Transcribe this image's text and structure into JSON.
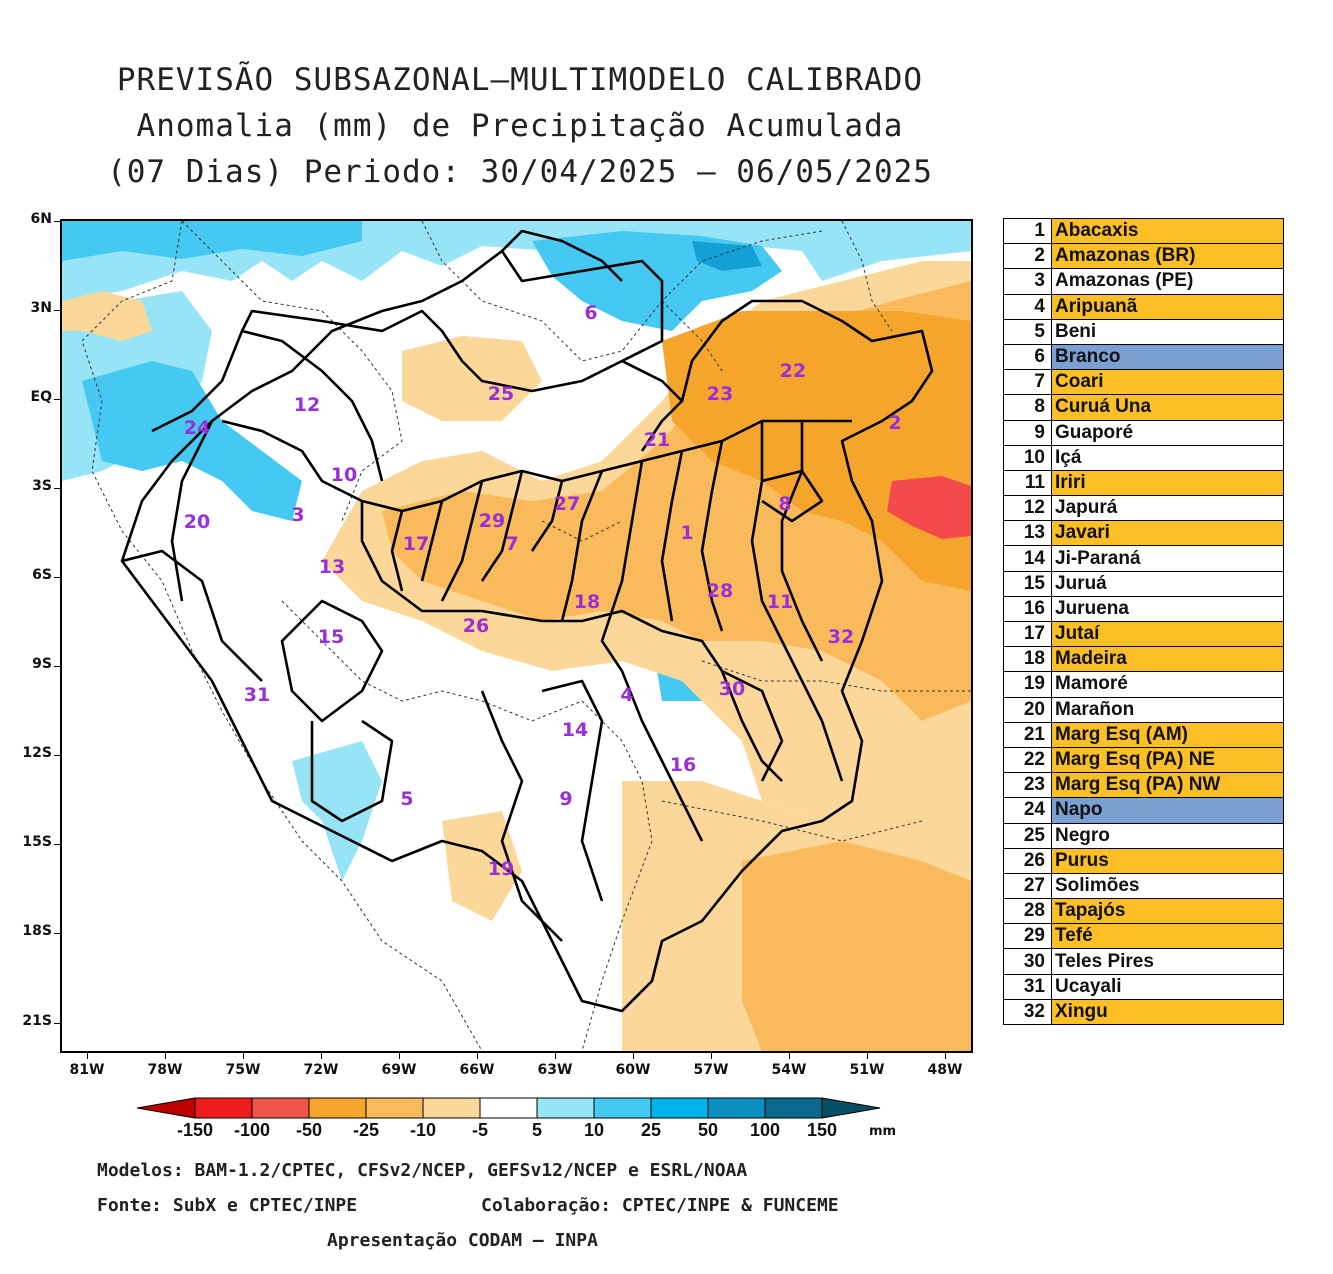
{
  "title": {
    "line1": "PREVISÃO SUBSAZONAL–MULTIMODELO CALIBRADO",
    "line2": "Anomalia (mm) de Precipitação Acumulada",
    "line3": "(07 Dias) Periodo: 30/04/2025 – 06/05/2025"
  },
  "axes": {
    "y_labels": [
      "6N",
      "3N",
      "EQ",
      "3S",
      "6S",
      "9S",
      "12S",
      "15S",
      "18S",
      "21S"
    ],
    "x_labels": [
      "81W",
      "78W",
      "75W",
      "72W",
      "69W",
      "66W",
      "63W",
      "60W",
      "57W",
      "54W",
      "51W",
      "48W"
    ]
  },
  "colors": {
    "light_orange": "#fbd79a",
    "orange": "#f9ba5c",
    "dark_orange": "#f6a52c",
    "red": "#f24a4a",
    "light_blue": "#97e4f7",
    "blue": "#45c9f2",
    "dark_blue": "#14a0d4",
    "legend_orange": "#fcbf26",
    "legend_blue": "#7aa0d2",
    "label_purple": "#9a2fd6"
  },
  "basin_labels": [
    {
      "n": "1"
    },
    {
      "n": "2"
    },
    {
      "n": "3"
    },
    {
      "n": "4"
    },
    {
      "n": "5"
    },
    {
      "n": "6"
    },
    {
      "n": "7"
    },
    {
      "n": "8"
    },
    {
      "n": "9"
    },
    {
      "n": "10"
    },
    {
      "n": "11"
    },
    {
      "n": "12"
    },
    {
      "n": "13"
    },
    {
      "n": "14"
    },
    {
      "n": "15"
    },
    {
      "n": "16"
    },
    {
      "n": "17"
    },
    {
      "n": "18"
    },
    {
      "n": "19"
    },
    {
      "n": "20"
    },
    {
      "n": "21"
    },
    {
      "n": "22"
    },
    {
      "n": "23"
    },
    {
      "n": "24"
    },
    {
      "n": "25"
    },
    {
      "n": "26"
    },
    {
      "n": "27"
    },
    {
      "n": "28"
    },
    {
      "n": "29"
    },
    {
      "n": "30"
    },
    {
      "n": "31"
    },
    {
      "n": "32"
    }
  ],
  "legend": [
    {
      "num": "1",
      "name": "Abacaxis",
      "status": "orange"
    },
    {
      "num": "2",
      "name": "Amazonas (BR)",
      "status": "orange"
    },
    {
      "num": "3",
      "name": "Amazonas (PE)",
      "status": "white"
    },
    {
      "num": "4",
      "name": "Aripuanã",
      "status": "orange"
    },
    {
      "num": "5",
      "name": "Beni",
      "status": "white"
    },
    {
      "num": "6",
      "name": "Branco",
      "status": "blue"
    },
    {
      "num": "7",
      "name": "Coari",
      "status": "orange"
    },
    {
      "num": "8",
      "name": "Curuá Una",
      "status": "orange"
    },
    {
      "num": "9",
      "name": "Guaporé",
      "status": "white"
    },
    {
      "num": "10",
      "name": "Içá",
      "status": "white"
    },
    {
      "num": "11",
      "name": "Iriri",
      "status": "orange"
    },
    {
      "num": "12",
      "name": "Japurá",
      "status": "white"
    },
    {
      "num": "13",
      "name": "Javari",
      "status": "orange"
    },
    {
      "num": "14",
      "name": "Ji-Paraná",
      "status": "white"
    },
    {
      "num": "15",
      "name": "Juruá",
      "status": "white"
    },
    {
      "num": "16",
      "name": "Juruena",
      "status": "white"
    },
    {
      "num": "17",
      "name": "Jutaí",
      "status": "orange"
    },
    {
      "num": "18",
      "name": "Madeira",
      "status": "orange"
    },
    {
      "num": "19",
      "name": "Mamoré",
      "status": "white"
    },
    {
      "num": "20",
      "name": "Marañon",
      "status": "white"
    },
    {
      "num": "21",
      "name": "Marg Esq (AM)",
      "status": "orange"
    },
    {
      "num": "22",
      "name": "Marg Esq (PA) NE",
      "status": "orange"
    },
    {
      "num": "23",
      "name": "Marg Esq (PA) NW",
      "status": "orange"
    },
    {
      "num": "24",
      "name": "Napo",
      "status": "blue"
    },
    {
      "num": "25",
      "name": "Negro",
      "status": "white"
    },
    {
      "num": "26",
      "name": "Purus",
      "status": "orange"
    },
    {
      "num": "27",
      "name": "Solimões",
      "status": "white"
    },
    {
      "num": "28",
      "name": "Tapajós",
      "status": "orange"
    },
    {
      "num": "29",
      "name": "Tefé",
      "status": "orange"
    },
    {
      "num": "30",
      "name": "Teles Pires",
      "status": "white"
    },
    {
      "num": "31",
      "name": "Ucayali",
      "status": "white"
    },
    {
      "num": "32",
      "name": "Xingu",
      "status": "orange"
    }
  ],
  "colorbar": {
    "labels": [
      "-150",
      "-100",
      "-50",
      "-25",
      "-10",
      "-5",
      "5",
      "10",
      "25",
      "50",
      "100",
      "150"
    ],
    "unit": "mm",
    "colors": [
      "#c00000",
      "#ee1c1c",
      "#f0554a",
      "#f6a52c",
      "#f9ba5c",
      "#fbd79a",
      "#ffffff",
      "#97e4f7",
      "#45c9f2",
      "#00b4ea",
      "#0a8fbf",
      "#08698d",
      "#064e66"
    ]
  },
  "credits": {
    "models": "Modelos: BAM-1.2/CPTEC, CFSv2/NCEP, GEFSv12/NCEP e ESRL/NOAA",
    "source": "Fonte: SubX e CPTEC/INPE",
    "collab": "Colaboração: CPTEC/INPE & FUNCEME",
    "presentation": "Apresentação CODAM – INPA"
  }
}
